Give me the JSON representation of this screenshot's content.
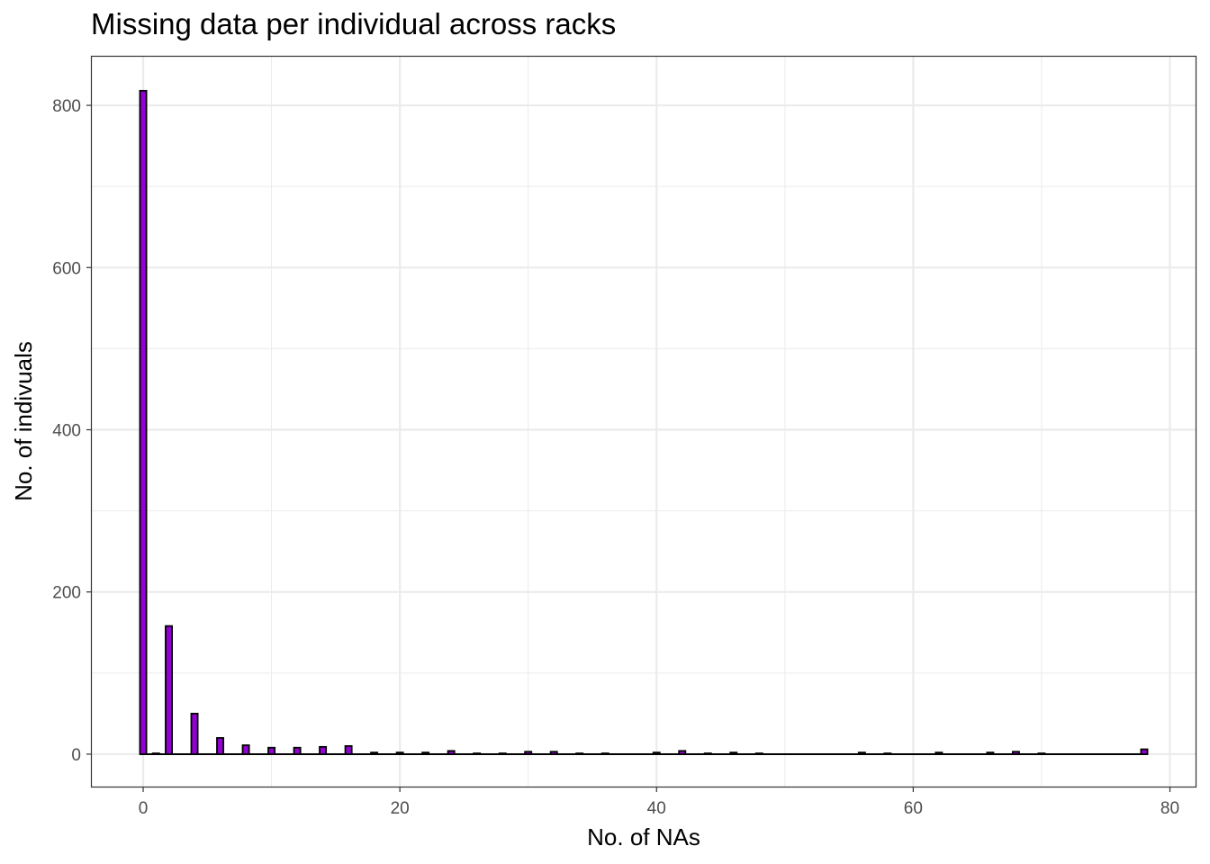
{
  "chart_data": {
    "type": "bar",
    "title": "Missing data per individual across racks",
    "xlabel": "No. of NAs",
    "ylabel": "No. of indivuals",
    "xlim": [
      -4,
      82
    ],
    "ylim": [
      -40,
      860
    ],
    "x_ticks": [
      0,
      20,
      40,
      60,
      80
    ],
    "y_ticks": [
      0,
      200,
      400,
      600,
      800
    ],
    "grid": true,
    "bin_width": 0.5,
    "bar_fill": "#9400d3",
    "bar_outline": "#000000",
    "x": [
      0,
      1,
      2,
      4,
      6,
      8,
      10,
      12,
      14,
      16,
      18,
      20,
      22,
      24,
      26,
      28,
      30,
      32,
      34,
      36,
      40,
      42,
      44,
      46,
      48,
      56,
      58,
      62,
      66,
      68,
      70,
      78
    ],
    "values": [
      818,
      1,
      158,
      50,
      20,
      11,
      8,
      8,
      9,
      10,
      2,
      2,
      2,
      4,
      1,
      1,
      3,
      3,
      1,
      1,
      2,
      4,
      1,
      2,
      1,
      2,
      1,
      2,
      2,
      3,
      1,
      6
    ]
  }
}
